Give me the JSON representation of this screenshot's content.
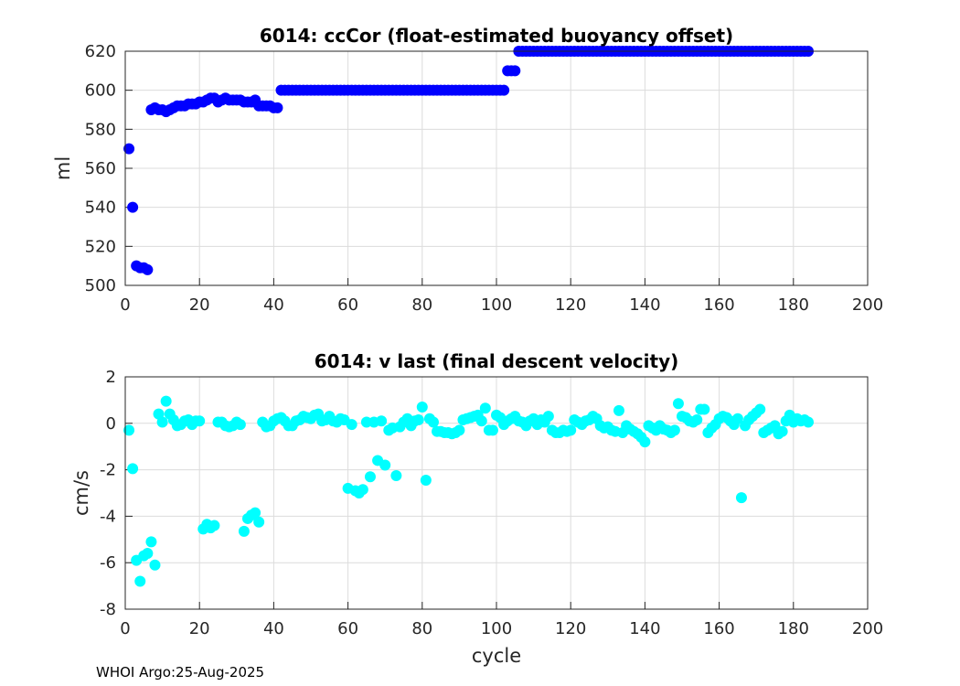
{
  "footer": "WHOI Argo:25-Aug-2025",
  "colors": {
    "top_series": "#0000ff",
    "bottom_series": "#00ffff",
    "grid": "#dcdcdc",
    "axis": "#262626"
  },
  "chart_data": [
    {
      "type": "scatter",
      "title": "6014: ccCor (float-estimated buoyancy offset)",
      "xlabel": "",
      "ylabel": "ml",
      "xlim": [
        0,
        200
      ],
      "ylim": [
        500,
        620
      ],
      "xticks": [
        0,
        20,
        40,
        60,
        80,
        100,
        120,
        140,
        160,
        180,
        200
      ],
      "yticks": [
        500,
        520,
        540,
        560,
        580,
        600,
        620
      ],
      "grid": true,
      "series": [
        {
          "name": "ccCor",
          "x": [
            1,
            2,
            3,
            4,
            5,
            6,
            7,
            8,
            9,
            10,
            11,
            12,
            13,
            14,
            15,
            16,
            17,
            18,
            19,
            20,
            21,
            22,
            23,
            24,
            25,
            26,
            27,
            28,
            29,
            30,
            31,
            32,
            33,
            34,
            35,
            36,
            37,
            38,
            39,
            40,
            41,
            42,
            43,
            44,
            45,
            46,
            47,
            48,
            49,
            50,
            51,
            52,
            53,
            54,
            55,
            56,
            57,
            58,
            59,
            60,
            61,
            62,
            63,
            64,
            65,
            66,
            67,
            68,
            69,
            70,
            71,
            72,
            73,
            74,
            75,
            76,
            77,
            78,
            79,
            80,
            81,
            82,
            83,
            84,
            85,
            86,
            87,
            88,
            89,
            90,
            91,
            92,
            93,
            94,
            95,
            96,
            97,
            98,
            99,
            100,
            101,
            102,
            103,
            104,
            105,
            106,
            107,
            108,
            109,
            110,
            111,
            112,
            113,
            114,
            115,
            116,
            117,
            118,
            119,
            120,
            121,
            122,
            123,
            124,
            125,
            126,
            127,
            128,
            129,
            130,
            131,
            132,
            133,
            134,
            135,
            136,
            137,
            138,
            139,
            140,
            141,
            142,
            143,
            144,
            145,
            146,
            147,
            148,
            149,
            150,
            151,
            152,
            153,
            154,
            155,
            156,
            157,
            158,
            159,
            160,
            161,
            162,
            163,
            164,
            165,
            166,
            167,
            168,
            169,
            170,
            171,
            172,
            173,
            174,
            175,
            176,
            177,
            178,
            179,
            180,
            181,
            182,
            183,
            184
          ],
          "y": [
            570,
            540,
            510,
            509,
            509,
            508,
            590,
            591,
            590,
            590,
            589,
            590,
            591,
            592,
            592,
            592,
            593,
            593,
            593,
            594,
            594,
            595,
            596,
            596,
            594,
            595,
            596,
            595,
            595,
            595,
            595,
            594,
            594,
            594,
            595,
            592,
            592,
            592,
            592,
            591,
            591,
            600,
            600,
            600,
            600,
            600,
            600,
            600,
            600,
            600,
            600,
            600,
            600,
            600,
            600,
            600,
            600,
            600,
            600,
            600,
            600,
            600,
            600,
            600,
            600,
            600,
            600,
            600,
            600,
            600,
            600,
            600,
            600,
            600,
            600,
            600,
            600,
            600,
            600,
            600,
            600,
            600,
            600,
            600,
            600,
            600,
            600,
            600,
            600,
            600,
            600,
            600,
            600,
            600,
            600,
            600,
            600,
            600,
            600,
            600,
            600,
            600,
            610,
            610,
            610,
            620,
            620,
            620,
            620,
            620,
            620,
            620,
            620,
            620,
            620,
            620,
            620,
            620,
            620,
            620,
            620,
            620,
            620,
            620,
            620,
            620,
            620,
            620,
            620,
            620,
            620,
            620,
            620,
            620,
            620,
            620,
            620,
            620,
            620,
            620,
            620,
            620,
            620,
            620,
            620,
            620,
            620,
            620,
            620,
            620,
            620,
            620,
            620,
            620,
            620,
            620,
            620,
            620,
            620,
            620,
            620,
            620,
            620,
            620,
            620,
            620,
            620,
            620,
            620,
            620,
            620,
            620,
            620,
            620,
            620,
            620,
            620,
            620,
            620,
            620,
            620,
            620,
            620,
            620
          ]
        }
      ]
    },
    {
      "type": "scatter",
      "title": "6014: v last (final descent velocity)",
      "xlabel": "cycle",
      "ylabel": "cm/s",
      "xlim": [
        0,
        200
      ],
      "ylim": [
        -8,
        2
      ],
      "xticks": [
        0,
        20,
        40,
        60,
        80,
        100,
        120,
        140,
        160,
        180,
        200
      ],
      "yticks": [
        -8,
        -6,
        -4,
        -2,
        0,
        2
      ],
      "grid": true,
      "series": [
        {
          "name": "v last",
          "x": [
            1,
            2,
            3,
            4,
            5,
            6,
            7,
            8,
            9,
            10,
            11,
            12,
            13,
            14,
            15,
            16,
            17,
            18,
            19,
            20,
            21,
            22,
            23,
            24,
            25,
            26,
            27,
            28,
            29,
            30,
            31,
            32,
            33,
            34,
            35,
            36,
            37,
            38,
            39,
            40,
            41,
            42,
            43,
            44,
            45,
            46,
            47,
            48,
            49,
            50,
            51,
            52,
            53,
            54,
            55,
            56,
            57,
            58,
            59,
            60,
            61,
            62,
            63,
            64,
            65,
            66,
            67,
            68,
            69,
            70,
            71,
            72,
            73,
            74,
            75,
            76,
            77,
            78,
            79,
            80,
            81,
            82,
            83,
            84,
            85,
            86,
            87,
            88,
            89,
            90,
            91,
            92,
            93,
            94,
            95,
            96,
            97,
            98,
            99,
            100,
            101,
            102,
            103,
            104,
            105,
            106,
            107,
            108,
            109,
            110,
            111,
            112,
            113,
            114,
            115,
            116,
            117,
            118,
            119,
            120,
            121,
            122,
            123,
            124,
            125,
            126,
            127,
            128,
            129,
            130,
            131,
            132,
            133,
            134,
            135,
            136,
            137,
            138,
            139,
            140,
            141,
            142,
            143,
            144,
            145,
            146,
            147,
            148,
            149,
            150,
            151,
            152,
            153,
            154,
            155,
            156,
            157,
            158,
            159,
            160,
            161,
            162,
            163,
            164,
            165,
            166,
            167,
            168,
            169,
            170,
            171,
            172,
            173,
            174,
            175,
            176,
            177,
            178,
            179,
            180,
            181,
            182,
            183,
            184
          ],
          "y": [
            -0.3,
            -1.95,
            -5.9,
            -6.8,
            -5.7,
            -5.6,
            -5.1,
            -6.1,
            0.4,
            0.05,
            0.95,
            0.4,
            0.15,
            -0.1,
            -0.05,
            0.1,
            0.15,
            -0.05,
            0.1,
            0.1,
            -4.55,
            -4.35,
            -4.5,
            -4.4,
            0.05,
            0.05,
            -0.1,
            -0.15,
            -0.1,
            0.05,
            -0.05,
            -4.65,
            -4.1,
            -3.95,
            -3.85,
            -4.25,
            0.05,
            -0.15,
            -0.1,
            0.1,
            0.2,
            0.25,
            0.1,
            -0.1,
            -0.1,
            0.1,
            0.15,
            0.3,
            0.25,
            0.2,
            0.35,
            0.4,
            0.1,
            0.15,
            0.3,
            0.1,
            0.05,
            0.2,
            0.15,
            -2.8,
            -0.05,
            -2.9,
            -3.0,
            -2.85,
            0.05,
            -2.3,
            0.05,
            -1.6,
            0.1,
            -1.8,
            -0.3,
            -0.2,
            -2.25,
            -0.15,
            0.05,
            0.2,
            -0.1,
            0.1,
            0.15,
            0.7,
            -2.45,
            0.2,
            0.05,
            -0.35,
            -0.35,
            -0.4,
            -0.4,
            -0.45,
            -0.4,
            -0.3,
            0.15,
            0.2,
            0.25,
            0.3,
            0.35,
            0.1,
            0.65,
            -0.3,
            -0.3,
            0.35,
            0.25,
            -0.05,
            0.1,
            0.2,
            0.3,
            0.1,
            0.05,
            -0.1,
            0.1,
            0.2,
            -0.05,
            0.15,
            0.05,
            0.3,
            -0.3,
            -0.4,
            -0.4,
            -0.3,
            -0.35,
            -0.3,
            0.15,
            0.05,
            -0.05,
            0.1,
            0.15,
            0.3,
            0.2,
            -0.1,
            -0.2,
            -0.15,
            -0.3,
            -0.35,
            0.55,
            -0.4,
            -0.1,
            -0.25,
            -0.35,
            -0.45,
            -0.6,
            -0.8,
            -0.1,
            -0.2,
            -0.3,
            -0.1,
            -0.25,
            -0.3,
            -0.4,
            -0.3,
            0.85,
            0.3,
            0.25,
            0.1,
            0.05,
            0.15,
            0.6,
            0.6,
            -0.4,
            -0.2,
            -0.05,
            0.2,
            0.3,
            0.25,
            0.1,
            -0.05,
            0.2,
            -3.2,
            -0.1,
            0.15,
            0.3,
            0.45,
            0.6,
            -0.4,
            -0.3,
            -0.2,
            -0.1,
            -0.45,
            -0.35,
            0.1,
            0.35,
            0.05,
            0.2,
            0.1,
            0.15,
            0.05
          ]
        }
      ]
    }
  ]
}
